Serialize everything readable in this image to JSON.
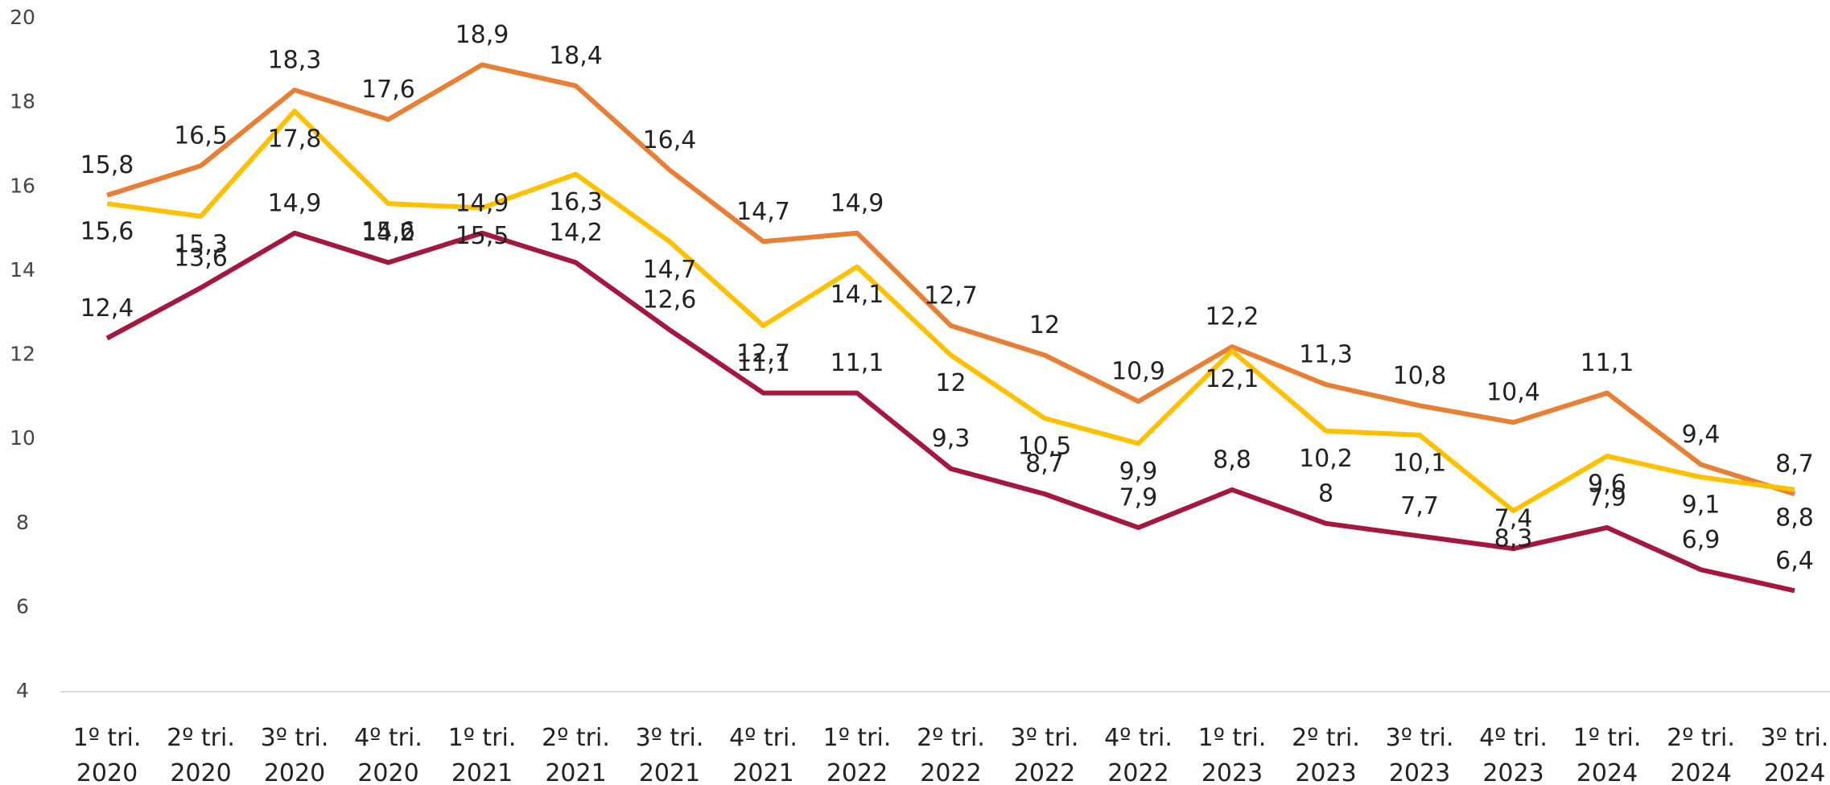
{
  "chart_data": {
    "type": "line",
    "categories": [
      "1º tri. 2020",
      "2º tri. 2020",
      "3º tri. 2020",
      "4º tri. 2020",
      "1º tri. 2021",
      "2º tri. 2021",
      "3º tri. 2021",
      "4º tri. 2021",
      "1º tri. 2022",
      "2º tri. 2022",
      "3º tri. 2022",
      "4º tri. 2022",
      "1º tri. 2023",
      "2º tri. 2023",
      "3º tri. 2023",
      "4º tri. 2023",
      "1º tri. 2024",
      "2º tri. 2024",
      "3º tri. 2024"
    ],
    "series": [
      {
        "color": "#E97F35",
        "values": [
          15.8,
          16.5,
          18.3,
          17.6,
          18.9,
          18.4,
          16.4,
          14.7,
          14.9,
          12.7,
          12,
          10.9,
          12.2,
          11.3,
          10.8,
          10.4,
          11.1,
          9.4,
          8.7
        ],
        "value_labels": [
          "15,8",
          "16,5",
          "18,3",
          "17,6",
          "18,9",
          "18,4",
          "16,4",
          "14,7",
          "14,9",
          "12,7",
          "12",
          "10,9",
          "12,2",
          "11,3",
          "10,8",
          "10,4",
          "11,1",
          "9,4",
          "8,7"
        ]
      },
      {
        "color": "#FFC000",
        "values": [
          15.6,
          15.3,
          17.8,
          15.6,
          15.5,
          16.3,
          14.7,
          12.7,
          14.1,
          12,
          10.5,
          9.9,
          12.1,
          10.2,
          10.1,
          8.3,
          9.6,
          9.1,
          8.8
        ],
        "value_labels": [
          "15,6",
          "15,3",
          "17,8",
          "15,6",
          "15,5",
          "16,3",
          "14,7",
          "12,7",
          "14,1",
          "12",
          "10,5",
          "9,9",
          "12,1",
          "10,2",
          "10,1",
          "8,3",
          "9,6",
          "9,1",
          "8,8"
        ]
      },
      {
        "color": "#A6173F",
        "values": [
          12.4,
          13.6,
          14.9,
          14.2,
          14.9,
          14.2,
          12.6,
          11.1,
          11.1,
          9.3,
          8.7,
          7.9,
          8.8,
          8,
          7.7,
          7.4,
          7.9,
          6.9,
          6.4
        ],
        "value_labels": [
          "12,4",
          "13,6",
          "14,9",
          "14,2",
          "14,9",
          "14,2",
          "12,6",
          "11,1",
          "11,1",
          "9,3",
          "8,7",
          "7,9",
          "8,8",
          "8",
          "7,7",
          "7,4",
          "7,9",
          "6,9",
          "6,4"
        ]
      }
    ],
    "ylim": [
      4,
      20
    ],
    "yticks": [
      4,
      6,
      8,
      10,
      12,
      14,
      16,
      18,
      20
    ],
    "grid": false
  }
}
